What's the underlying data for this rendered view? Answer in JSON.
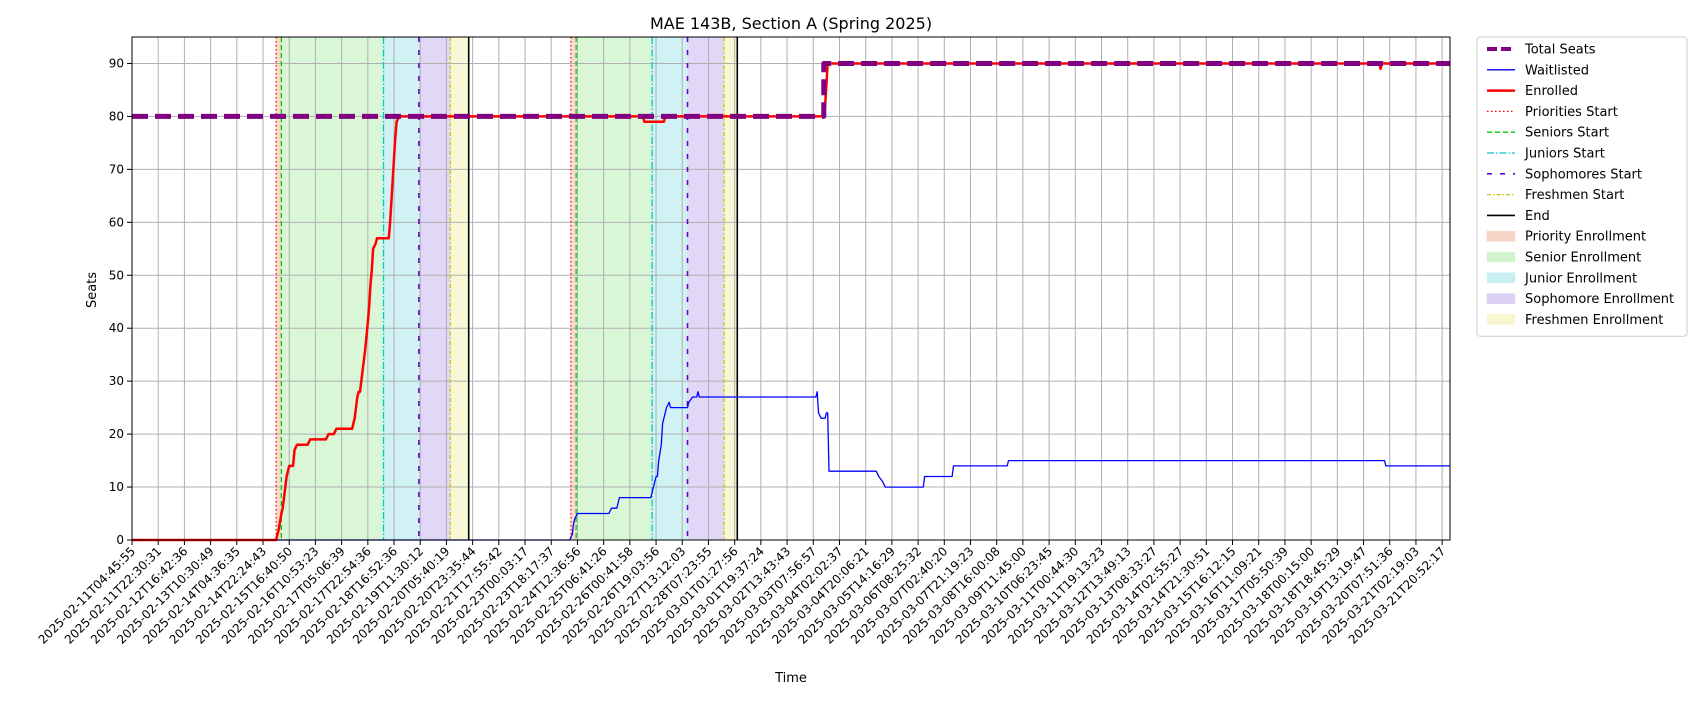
{
  "chart_data": {
    "type": "line",
    "title": "MAE 143B, Section A (Spring 2025)",
    "xlabel": "Time",
    "ylabel": "Seats",
    "ylim": [
      0,
      95
    ],
    "yticks": [
      0,
      10,
      20,
      30,
      40,
      50,
      60,
      70,
      80,
      90
    ],
    "grid": true,
    "legend_position": "outside-top-right",
    "xtick_labels": [
      "2025-02-11T04:45:55",
      "2025-02-11T22:30:31",
      "2025-02-12T16:42:36",
      "2025-02-13T10:30:49",
      "2025-02-14T04:36:35",
      "2025-02-14T22:24:43",
      "2025-02-15T16:40:50",
      "2025-02-16T10:53:23",
      "2025-02-17T05:06:39",
      "2025-02-17T22:54:36",
      "2025-02-18T16:52:36",
      "2025-02-19T11:30:12",
      "2025-02-20T05:40:19",
      "2025-02-20T23:35:44",
      "2025-02-21T17:55:42",
      "2025-02-23T00:03:17",
      "2025-02-23T18:17:37",
      "2025-02-24T12:36:56",
      "2025-02-25T06:41:26",
      "2025-02-26T00:41:58",
      "2025-02-26T19:03:56",
      "2025-02-27T13:12:03",
      "2025-02-28T07:23:55",
      "2025-03-01T01:27:56",
      "2025-03-01T19:37:24",
      "2025-03-02T13:43:43",
      "2025-03-03T07:56:57",
      "2025-03-04T02:02:37",
      "2025-03-04T20:06:21",
      "2025-03-05T14:16:29",
      "2025-03-06T08:25:32",
      "2025-03-07T02:40:20",
      "2025-03-07T21:19:23",
      "2025-03-08T16:00:08",
      "2025-03-09T11:45:00",
      "2025-03-10T06:23:45",
      "2025-03-11T00:44:30",
      "2025-03-11T19:13:23",
      "2025-03-12T13:49:13",
      "2025-03-13T08:33:27",
      "2025-03-14T02:55:27",
      "2025-03-14T21:30:51",
      "2025-03-15T16:12:15",
      "2025-03-16T11:09:21",
      "2025-03-17T05:50:39",
      "2025-03-18T00:15:00",
      "2025-03-18T18:45:29",
      "2025-03-19T13:19:47",
      "2025-03-20T07:51:36",
      "2025-03-21T02:19:03",
      "2025-03-21T20:52:17"
    ],
    "x_index_range": [
      0,
      50.3
    ],
    "series": [
      {
        "name": "Total Seats",
        "color": "#800080",
        "style": "dashed-thick",
        "points": [
          [
            0,
            80
          ],
          [
            26.4,
            80
          ],
          [
            26.4,
            90
          ],
          [
            50.3,
            90
          ]
        ]
      },
      {
        "name": "Waitlisted",
        "color": "#0000ff",
        "style": "solid-thin",
        "points": [
          [
            0,
            0
          ],
          [
            16.7,
            0
          ],
          [
            16.8,
            1
          ],
          [
            16.85,
            3
          ],
          [
            16.9,
            4
          ],
          [
            17.0,
            5
          ],
          [
            18.2,
            5
          ],
          [
            18.3,
            6
          ],
          [
            18.5,
            6
          ],
          [
            18.6,
            8
          ],
          [
            19.8,
            8
          ],
          [
            19.9,
            10
          ],
          [
            20.0,
            12
          ],
          [
            20.05,
            12
          ],
          [
            20.1,
            15
          ],
          [
            20.2,
            18
          ],
          [
            20.25,
            22
          ],
          [
            20.3,
            23
          ],
          [
            20.4,
            25
          ],
          [
            20.5,
            26
          ],
          [
            20.55,
            25
          ],
          [
            21.2,
            25
          ],
          [
            21.25,
            26
          ],
          [
            21.4,
            27
          ],
          [
            21.55,
            27
          ],
          [
            21.6,
            28
          ],
          [
            21.65,
            27
          ],
          [
            26.1,
            27
          ],
          [
            26.15,
            28
          ],
          [
            26.2,
            24
          ],
          [
            26.3,
            23
          ],
          [
            26.45,
            23
          ],
          [
            26.5,
            24
          ],
          [
            26.55,
            24
          ],
          [
            26.6,
            13
          ],
          [
            28.4,
            13
          ],
          [
            28.5,
            12
          ],
          [
            28.65,
            11
          ],
          [
            28.75,
            10
          ],
          [
            30.2,
            10
          ],
          [
            30.25,
            12
          ],
          [
            31.3,
            12
          ],
          [
            31.35,
            14
          ],
          [
            33.4,
            14
          ],
          [
            33.45,
            15
          ],
          [
            47.8,
            15
          ],
          [
            47.85,
            14
          ],
          [
            50.3,
            14
          ]
        ]
      },
      {
        "name": "Enrolled",
        "color": "#ff0000",
        "style": "solid-thick",
        "points": [
          [
            0,
            0
          ],
          [
            5.5,
            0
          ],
          [
            5.6,
            2
          ],
          [
            5.7,
            5
          ],
          [
            5.75,
            6
          ],
          [
            5.8,
            8
          ],
          [
            5.9,
            12
          ],
          [
            6.0,
            14
          ],
          [
            6.15,
            14
          ],
          [
            6.2,
            17
          ],
          [
            6.3,
            18
          ],
          [
            6.7,
            18
          ],
          [
            6.8,
            19
          ],
          [
            7.4,
            19
          ],
          [
            7.5,
            20
          ],
          [
            7.7,
            20
          ],
          [
            7.8,
            21
          ],
          [
            8.4,
            21
          ],
          [
            8.5,
            23
          ],
          [
            8.6,
            27
          ],
          [
            8.65,
            28
          ],
          [
            8.7,
            28
          ],
          [
            8.8,
            32
          ],
          [
            8.9,
            36
          ],
          [
            9.0,
            41
          ],
          [
            9.05,
            44
          ],
          [
            9.1,
            48
          ],
          [
            9.15,
            51
          ],
          [
            9.2,
            55
          ],
          [
            9.3,
            56
          ],
          [
            9.35,
            57
          ],
          [
            9.8,
            57
          ],
          [
            9.85,
            60
          ],
          [
            9.9,
            64
          ],
          [
            9.95,
            68
          ],
          [
            10.0,
            72
          ],
          [
            10.05,
            76
          ],
          [
            10.1,
            79
          ],
          [
            10.2,
            80
          ],
          [
            19.5,
            80
          ],
          [
            19.55,
            79
          ],
          [
            20.3,
            79
          ],
          [
            20.35,
            80
          ],
          [
            26.4,
            80
          ],
          [
            26.45,
            82
          ],
          [
            26.5,
            86
          ],
          [
            26.55,
            90
          ],
          [
            47.6,
            90
          ],
          [
            47.65,
            89
          ],
          [
            47.7,
            90
          ],
          [
            50.3,
            90
          ]
        ]
      }
    ],
    "markers": {
      "cycle1": {
        "priorities": 5.5,
        "seniors": 5.7,
        "juniors": 9.6,
        "sophomores": 10.95,
        "freshmen": 12.15,
        "end": 12.85
      },
      "cycle2": {
        "priorities": 16.75,
        "seniors": 16.95,
        "juniors": 19.85,
        "sophomores": 21.2,
        "freshmen": 22.6,
        "end": 23.1
      }
    },
    "legend": [
      {
        "label": "Total Seats",
        "kind": "line",
        "color": "#800080",
        "dash": "10,4",
        "width": 4
      },
      {
        "label": "Waitlisted",
        "kind": "line",
        "color": "#0000ff",
        "dash": "",
        "width": 1.3
      },
      {
        "label": "Enrolled",
        "kind": "line",
        "color": "#ff0000",
        "dash": "",
        "width": 2.5
      },
      {
        "label": "Priorities Start",
        "kind": "line",
        "color": "#ff0000",
        "dash": "1.5,2.5",
        "width": 1.3
      },
      {
        "label": "Seniors Start",
        "kind": "line",
        "color": "#00cc00",
        "dash": "5,3",
        "width": 1.3
      },
      {
        "label": "Juniors Start",
        "kind": "line",
        "color": "#00c8c8",
        "dash": "7,2,1.5,2",
        "width": 1.3
      },
      {
        "label": "Sophomores Start",
        "kind": "line",
        "color": "#6600cc",
        "dash": "5,8",
        "width": 1.6
      },
      {
        "label": "Freshmen Start",
        "kind": "line",
        "color": "#d4c400",
        "dash": "4,2,1.5,2",
        "width": 1.3
      },
      {
        "label": "End",
        "kind": "line",
        "color": "#000000",
        "dash": "",
        "width": 1.6
      },
      {
        "label": "Priority Enrollment",
        "kind": "patch",
        "color": "#f7d3c6"
      },
      {
        "label": "Senior Enrollment",
        "kind": "patch",
        "color": "#d2f5cf"
      },
      {
        "label": "Junior Enrollment",
        "kind": "patch",
        "color": "#c8f0f2"
      },
      {
        "label": "Sophomore Enrollment",
        "kind": "patch",
        "color": "#dcd0f5"
      },
      {
        "label": "Freshmen Enrollment",
        "kind": "patch",
        "color": "#f7f6cf"
      }
    ]
  }
}
